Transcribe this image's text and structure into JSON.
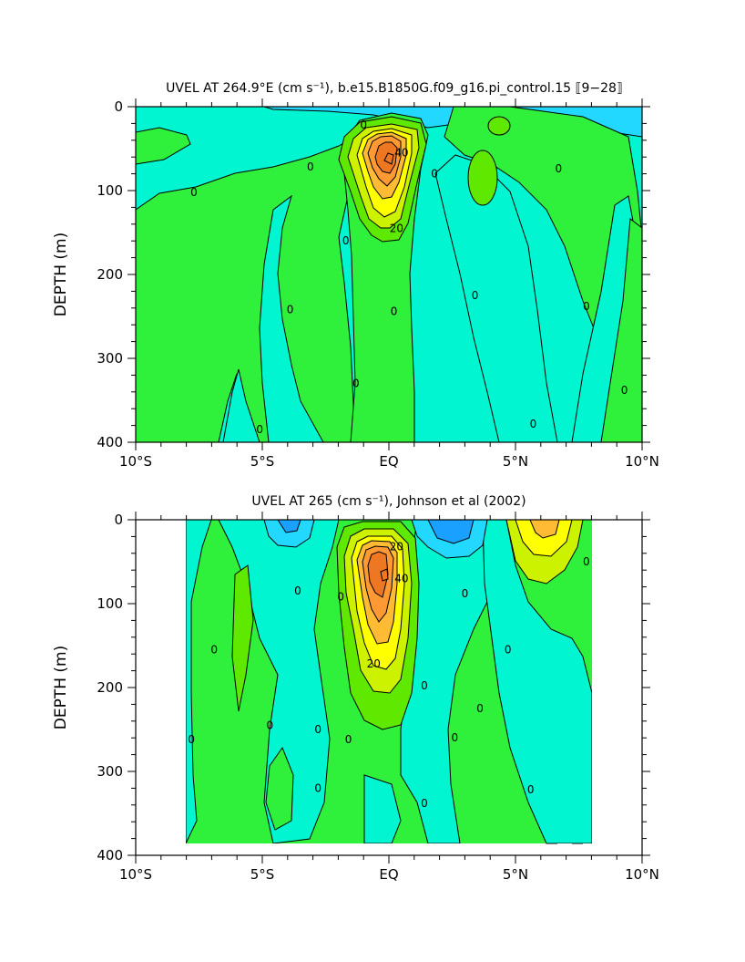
{
  "colors": {
    "strong_negative": "#1aa0ff",
    "negative": "#22d8ff",
    "near_zero": "#00f5d0",
    "weak_positive": "#2ff03a",
    "positive": "#5fe800",
    "moderate": "#ccf200",
    "yellow": "#ffff00",
    "light_orange": "#ffbb33",
    "orange": "#ff9933",
    "dark_orange": "#ee7722",
    "contour_line": "#000000"
  },
  "chart_data": [
    {
      "type": "contour",
      "title": "UVEL AT 264.9°E (cm s⁻¹), b.e15.B1850G.f09_g16.pi_control.15 ⟦9−28⟧",
      "xlabel": "",
      "ylabel": "DEPTH (m)",
      "xlim": [
        -10,
        10
      ],
      "ylim": [
        0,
        400
      ],
      "y_inverted": true,
      "x_ticks": [
        -10,
        -5,
        0,
        5,
        10
      ],
      "x_tick_labels": [
        "10°S",
        "5°S",
        "EQ",
        "5°N",
        "10°N"
      ],
      "y_ticks": [
        0,
        100,
        200,
        300,
        400
      ],
      "y_tick_labels": [
        "0",
        "100",
        "200",
        "300",
        "400"
      ],
      "contour_interval_cm_s": 10,
      "core": {
        "lat": 0.0,
        "depth": 70,
        "max_speed": 70
      },
      "contour_labels": [
        {
          "text": "0",
          "lat": -7.7,
          "depth": 102
        },
        {
          "text": "0",
          "lat": -3.1,
          "depth": 72
        },
        {
          "text": "0",
          "lat": -1.7,
          "depth": 160
        },
        {
          "text": "0",
          "lat": -3.9,
          "depth": 242
        },
        {
          "text": "0",
          "lat": -5.1,
          "depth": 385
        },
        {
          "text": "0",
          "lat": -1.3,
          "depth": 330
        },
        {
          "text": "0",
          "lat": -1.0,
          "depth": 22
        },
        {
          "text": "40",
          "lat": 0.5,
          "depth": 55
        },
        {
          "text": "20",
          "lat": 0.3,
          "depth": 145
        },
        {
          "text": "0",
          "lat": 1.8,
          "depth": 80
        },
        {
          "text": "0",
          "lat": 0.2,
          "depth": 244
        },
        {
          "text": "0",
          "lat": 3.4,
          "depth": 225
        },
        {
          "text": "0",
          "lat": 5.7,
          "depth": 378
        },
        {
          "text": "0",
          "lat": 6.7,
          "depth": 74
        },
        {
          "text": "0",
          "lat": 7.8,
          "depth": 238
        },
        {
          "text": "0",
          "lat": 9.3,
          "depth": 338
        }
      ]
    },
    {
      "type": "contour",
      "title": "UVEL AT 265 (cm s⁻¹), Johnson et al (2002)",
      "xlabel": "",
      "ylabel": "DEPTH (m)",
      "xlim": [
        -10,
        10
      ],
      "ylim": [
        0,
        400
      ],
      "y_inverted": true,
      "data_lat_range": [
        -8,
        8
      ],
      "x_ticks": [
        -10,
        -5,
        0,
        5,
        10
      ],
      "x_tick_labels": [
        "10°S",
        "5°S",
        "EQ",
        "5°N",
        "10°N"
      ],
      "y_ticks": [
        0,
        100,
        200,
        300,
        400
      ],
      "y_tick_labels": [
        "0",
        "100",
        "200",
        "300",
        "400"
      ],
      "contour_interval_cm_s": 10,
      "core": {
        "lat": -0.1,
        "depth": 65,
        "max_speed": 70
      },
      "contour_labels": [
        {
          "text": "0",
          "lat": -6.9,
          "depth": 155
        },
        {
          "text": "0",
          "lat": -7.8,
          "depth": 262
        },
        {
          "text": "0",
          "lat": -3.6,
          "depth": 85
        },
        {
          "text": "0",
          "lat": -4.7,
          "depth": 245
        },
        {
          "text": "0",
          "lat": -2.8,
          "depth": 250
        },
        {
          "text": "0",
          "lat": -2.8,
          "depth": 320
        },
        {
          "text": "0",
          "lat": -1.9,
          "depth": 92
        },
        {
          "text": "0",
          "lat": -1.6,
          "depth": 262
        },
        {
          "text": "20",
          "lat": 0.3,
          "depth": 32
        },
        {
          "text": "40",
          "lat": 0.5,
          "depth": 70
        },
        {
          "text": "20",
          "lat": -0.6,
          "depth": 172
        },
        {
          "text": "0",
          "lat": 1.4,
          "depth": 198
        },
        {
          "text": "0",
          "lat": 1.4,
          "depth": 338
        },
        {
          "text": "0",
          "lat": 3.0,
          "depth": 88
        },
        {
          "text": "0",
          "lat": 2.6,
          "depth": 260
        },
        {
          "text": "0",
          "lat": 3.6,
          "depth": 225
        },
        {
          "text": "0",
          "lat": 4.7,
          "depth": 155
        },
        {
          "text": "0",
          "lat": 5.6,
          "depth": 322
        },
        {
          "text": "0",
          "lat": 7.8,
          "depth": 50
        }
      ]
    }
  ]
}
